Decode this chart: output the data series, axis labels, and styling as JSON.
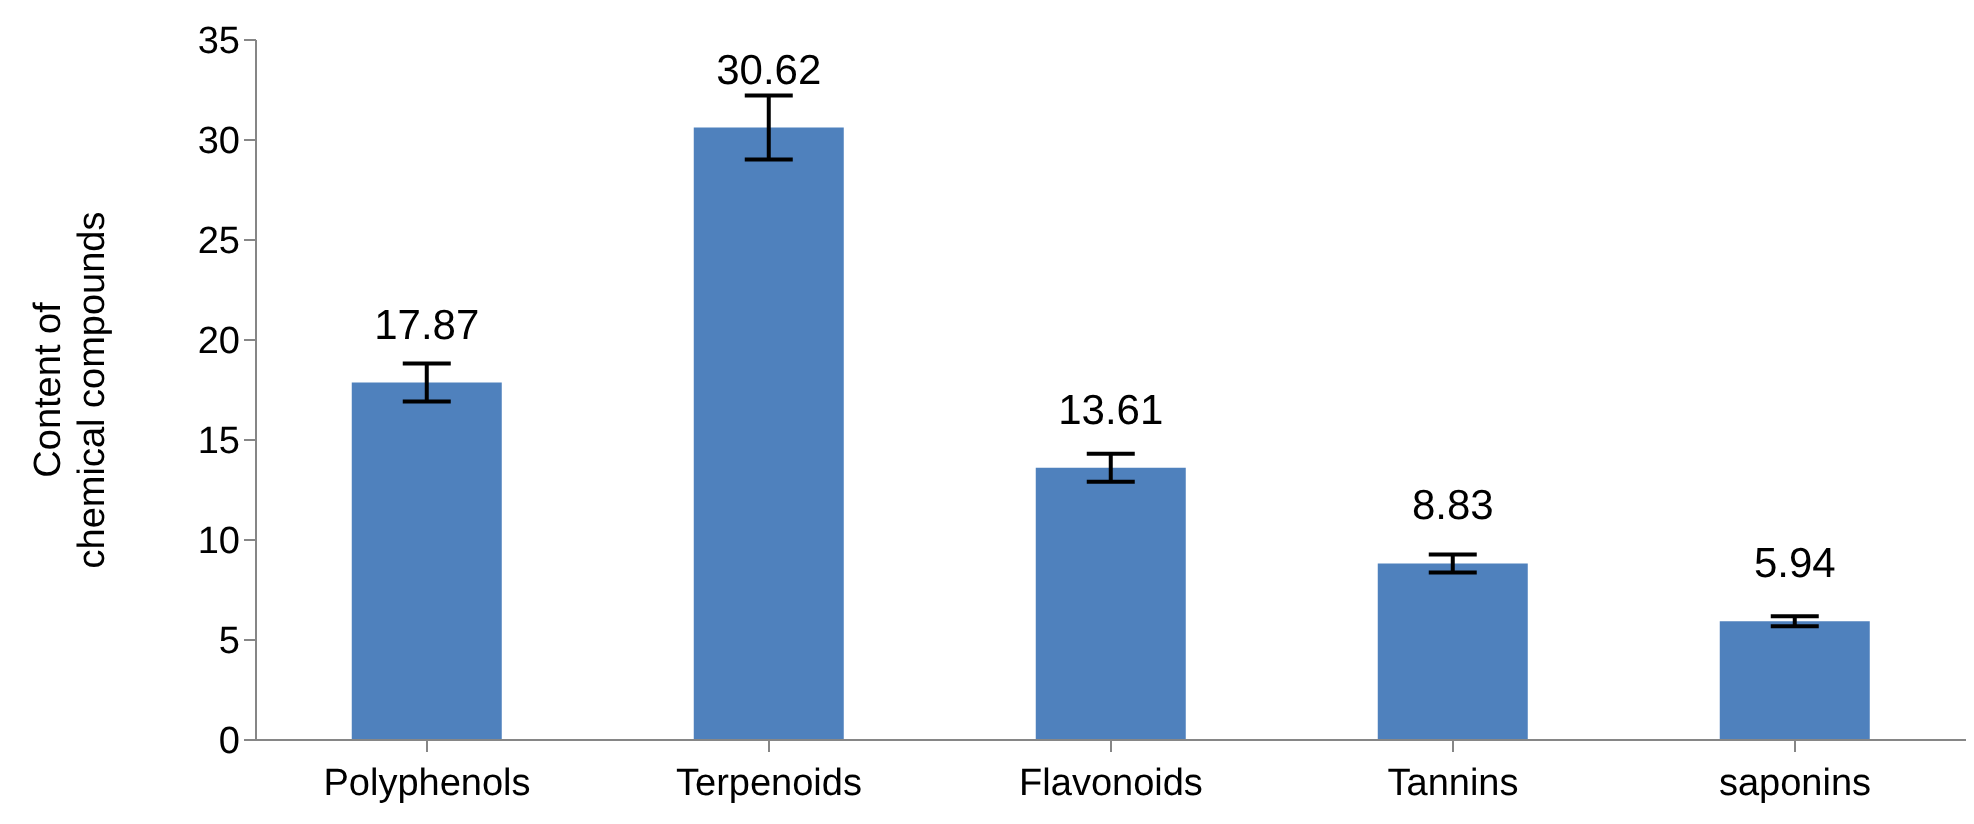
{
  "chart_data": {
    "type": "bar",
    "ylabel": "Content of chemical compounds",
    "categories": [
      "Polyphenols",
      "Terpenoids",
      "Flavonoids",
      "Tannins",
      "saponins"
    ],
    "values": [
      17.87,
      30.62,
      13.61,
      8.83,
      5.94
    ],
    "errors": [
      0.95,
      1.6,
      0.7,
      0.45,
      0.25
    ],
    "color": "#4f81bd",
    "ylim": [
      0,
      35
    ],
    "yticks": [
      0,
      5,
      10,
      15,
      20,
      25,
      30,
      35
    ],
    "grid": false,
    "legend": false,
    "data_labels": true
  }
}
